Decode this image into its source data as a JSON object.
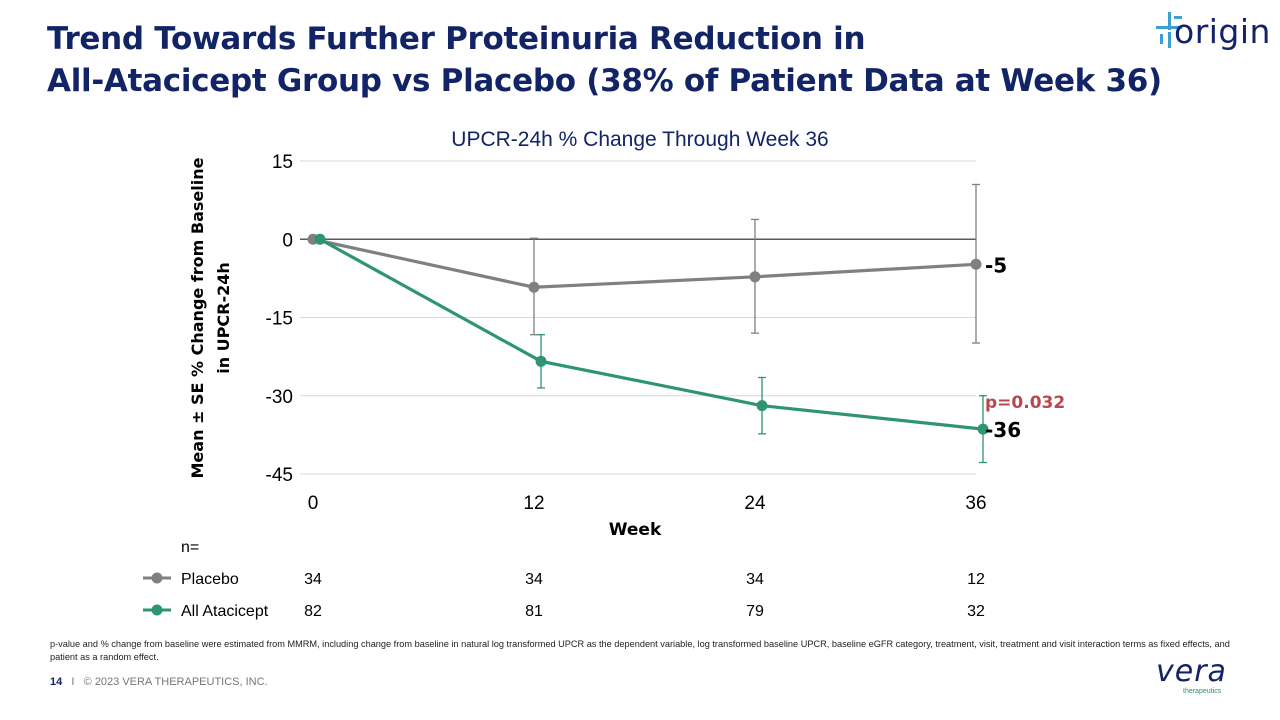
{
  "slide": {
    "title_line1": "Trend Towards Further Proteinuria Reduction in",
    "title_line2": "All-Atacicept Group vs Placebo (38% of Patient Data at Week 36)",
    "logo_text": "origin",
    "footnote": "p-value and % change from baseline were estimated from MMRM, including change from baseline in natural log transformed UPCR as the dependent variable, log transformed baseline UPCR, baseline eGFR category, treatment, visit, treatment and visit interaction terms as fixed effects, and patient as a random effect.",
    "page_number": "14",
    "separator": "I",
    "copyright": "© 2023 VERA THERAPEUTICS, INC.",
    "vera_word": "vera",
    "vera_sub": "therapeutics"
  },
  "colors": {
    "placebo": "#808080",
    "atacicept": "#2e9474",
    "pvalue": "#b9474f",
    "title": "#122466"
  },
  "chart_data": {
    "type": "line",
    "title": "UPCR-24h % Change Through Week 36",
    "xlabel": "Week",
    "ylabel_line1": "Mean ± SE % Change from Baseline",
    "ylabel_line2": "in UPCR-24h",
    "x": [
      0,
      12,
      24,
      36
    ],
    "ylim": [
      -45,
      15
    ],
    "yticks": [
      15,
      0,
      -15,
      -30,
      -45
    ],
    "ytick_labels": [
      "15",
      "0",
      "-15",
      "-30",
      "-45"
    ],
    "xtick_labels": [
      "0",
      "12",
      "24",
      "36"
    ],
    "grid": true,
    "series": [
      {
        "name": "Placebo",
        "color": "#808080",
        "values": [
          0,
          -9.2,
          -7.2,
          -4.8
        ],
        "error_low": [
          0,
          -18.3,
          -18.0,
          -19.9
        ],
        "error_high": [
          0,
          0.2,
          3.8,
          10.5
        ],
        "n": [
          "34",
          "34",
          "34",
          "12"
        ],
        "end_label": "-5"
      },
      {
        "name": "All Atacicept",
        "color": "#2e9474",
        "values": [
          0,
          -23.4,
          -31.9,
          -36.4
        ],
        "error_low": [
          0,
          -28.5,
          -37.3,
          -42.8
        ],
        "error_high": [
          0,
          -18.3,
          -26.5,
          -30.0
        ],
        "n": [
          "82",
          "81",
          "79",
          "32"
        ],
        "end_label": "-36"
      }
    ],
    "annotations": {
      "pvalue": "p=0.032",
      "n_label": "n="
    }
  }
}
